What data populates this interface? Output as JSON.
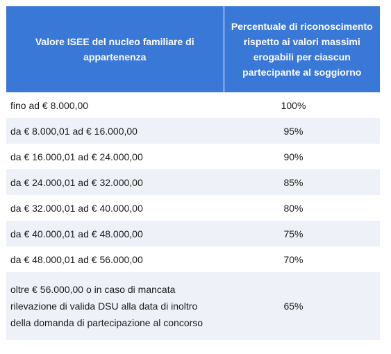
{
  "table": {
    "headers": [
      "Valore ISEE del nucleo familiare di appartenenza",
      "Percentuale di riconoscimento rispetto ai valori massimi erogabili per ciascun partecipante al soggiorno"
    ],
    "rows": [
      {
        "range": "fino ad € 8.000,00",
        "percent": "100%"
      },
      {
        "range": "da € 8.000,01 ad € 16.000,00",
        "percent": "95%"
      },
      {
        "range": "da € 16.000,01 ad € 24.000,00",
        "percent": "90%"
      },
      {
        "range": "da € 24.000,01 ad € 32.000,00",
        "percent": "85%"
      },
      {
        "range": "da € 32.000,01 ad € 40.000,00",
        "percent": "80%"
      },
      {
        "range": "da € 40.000,01 ad € 48.000,00",
        "percent": "75%"
      },
      {
        "range": "da € 48.000,01 ad € 56.000,00",
        "percent": "70%"
      },
      {
        "range": "oltre € 56.000,00 o in caso di mancata rilevazione di valida DSU alla data di inoltro della domanda di partecipazione al concorso",
        "percent": "65%"
      }
    ]
  },
  "colors": {
    "header_bg": "#3a78d8",
    "header_text": "#ffffff",
    "stripe_bg": "#eef1f7",
    "text": "#1a1a1a"
  }
}
